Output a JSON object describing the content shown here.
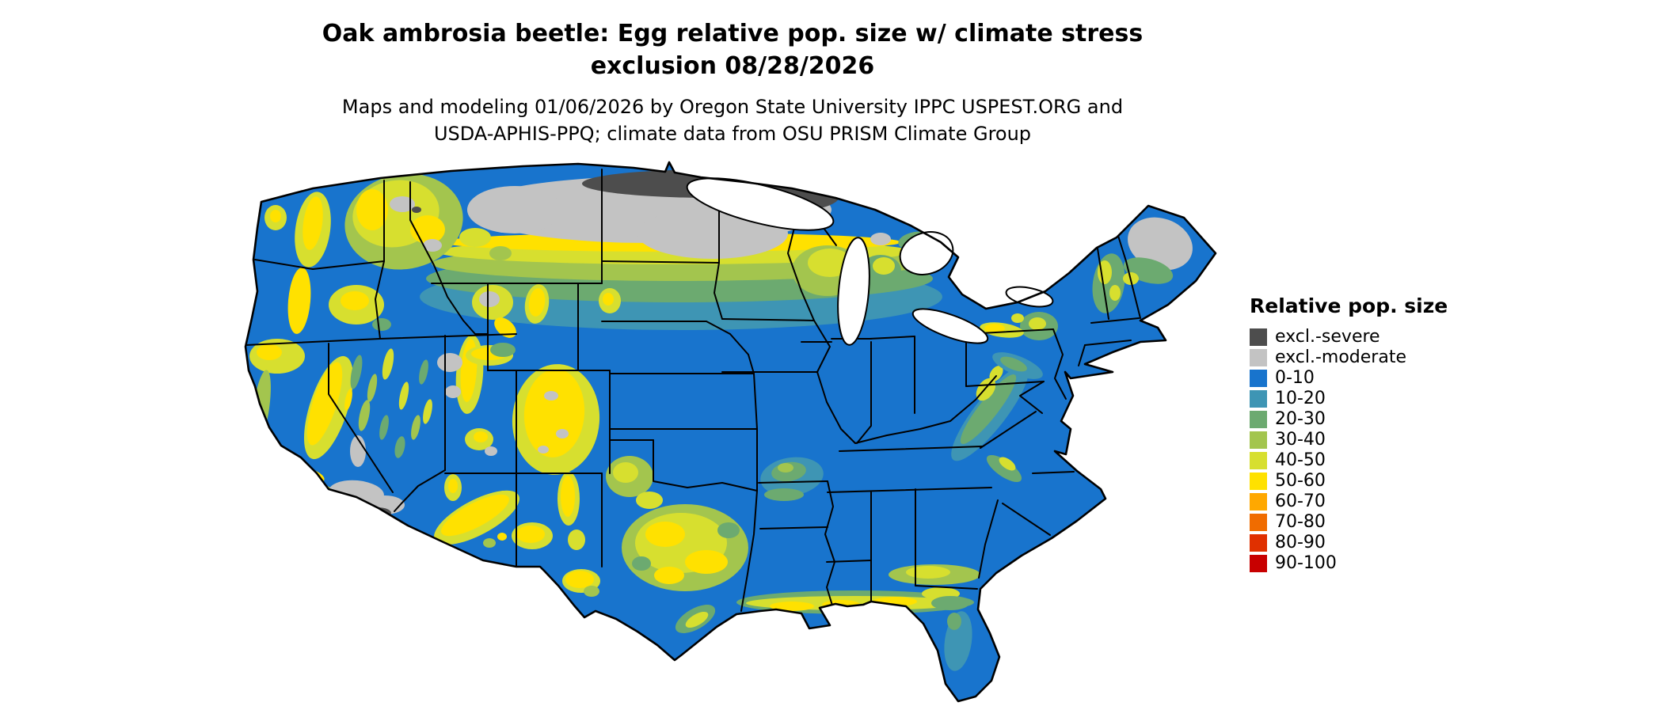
{
  "title": {
    "line1": "Oak ambrosia beetle: Egg relative pop. size w/ climate stress",
    "line2": "exclusion 08/28/2026"
  },
  "subtitle": {
    "line1": "Maps and modeling 01/06/2026 by Oregon State University IPPC USPEST.ORG and",
    "line2": "USDA-APHIS-PPQ; climate data from OSU PRISM Climate Group"
  },
  "legend": {
    "title": "Relative pop. size",
    "items": [
      {
        "key": "excl_severe",
        "label": "excl.-severe",
        "color": "#4d4d4d"
      },
      {
        "key": "excl_moderate",
        "label": "excl.-moderate",
        "color": "#c3c3c3"
      },
      {
        "key": "v0010",
        "label": "0-10",
        "color": "#1874cd"
      },
      {
        "key": "v1020",
        "label": "10-20",
        "color": "#3e95b4"
      },
      {
        "key": "v2030",
        "label": "20-30",
        "color": "#6caa70"
      },
      {
        "key": "v3040",
        "label": "30-40",
        "color": "#a3c54e"
      },
      {
        "key": "v4050",
        "label": "40-50",
        "color": "#d7df2f"
      },
      {
        "key": "v5060",
        "label": "50-60",
        "color": "#ffe100"
      },
      {
        "key": "v6070",
        "label": "60-70",
        "color": "#ffa800"
      },
      {
        "key": "v7080",
        "label": "70-80",
        "color": "#f06c00"
      },
      {
        "key": "v8090",
        "label": "80-90",
        "color": "#e03000"
      },
      {
        "key": "v90100",
        "label": "90-100",
        "color": "#c80000"
      }
    ]
  }
}
